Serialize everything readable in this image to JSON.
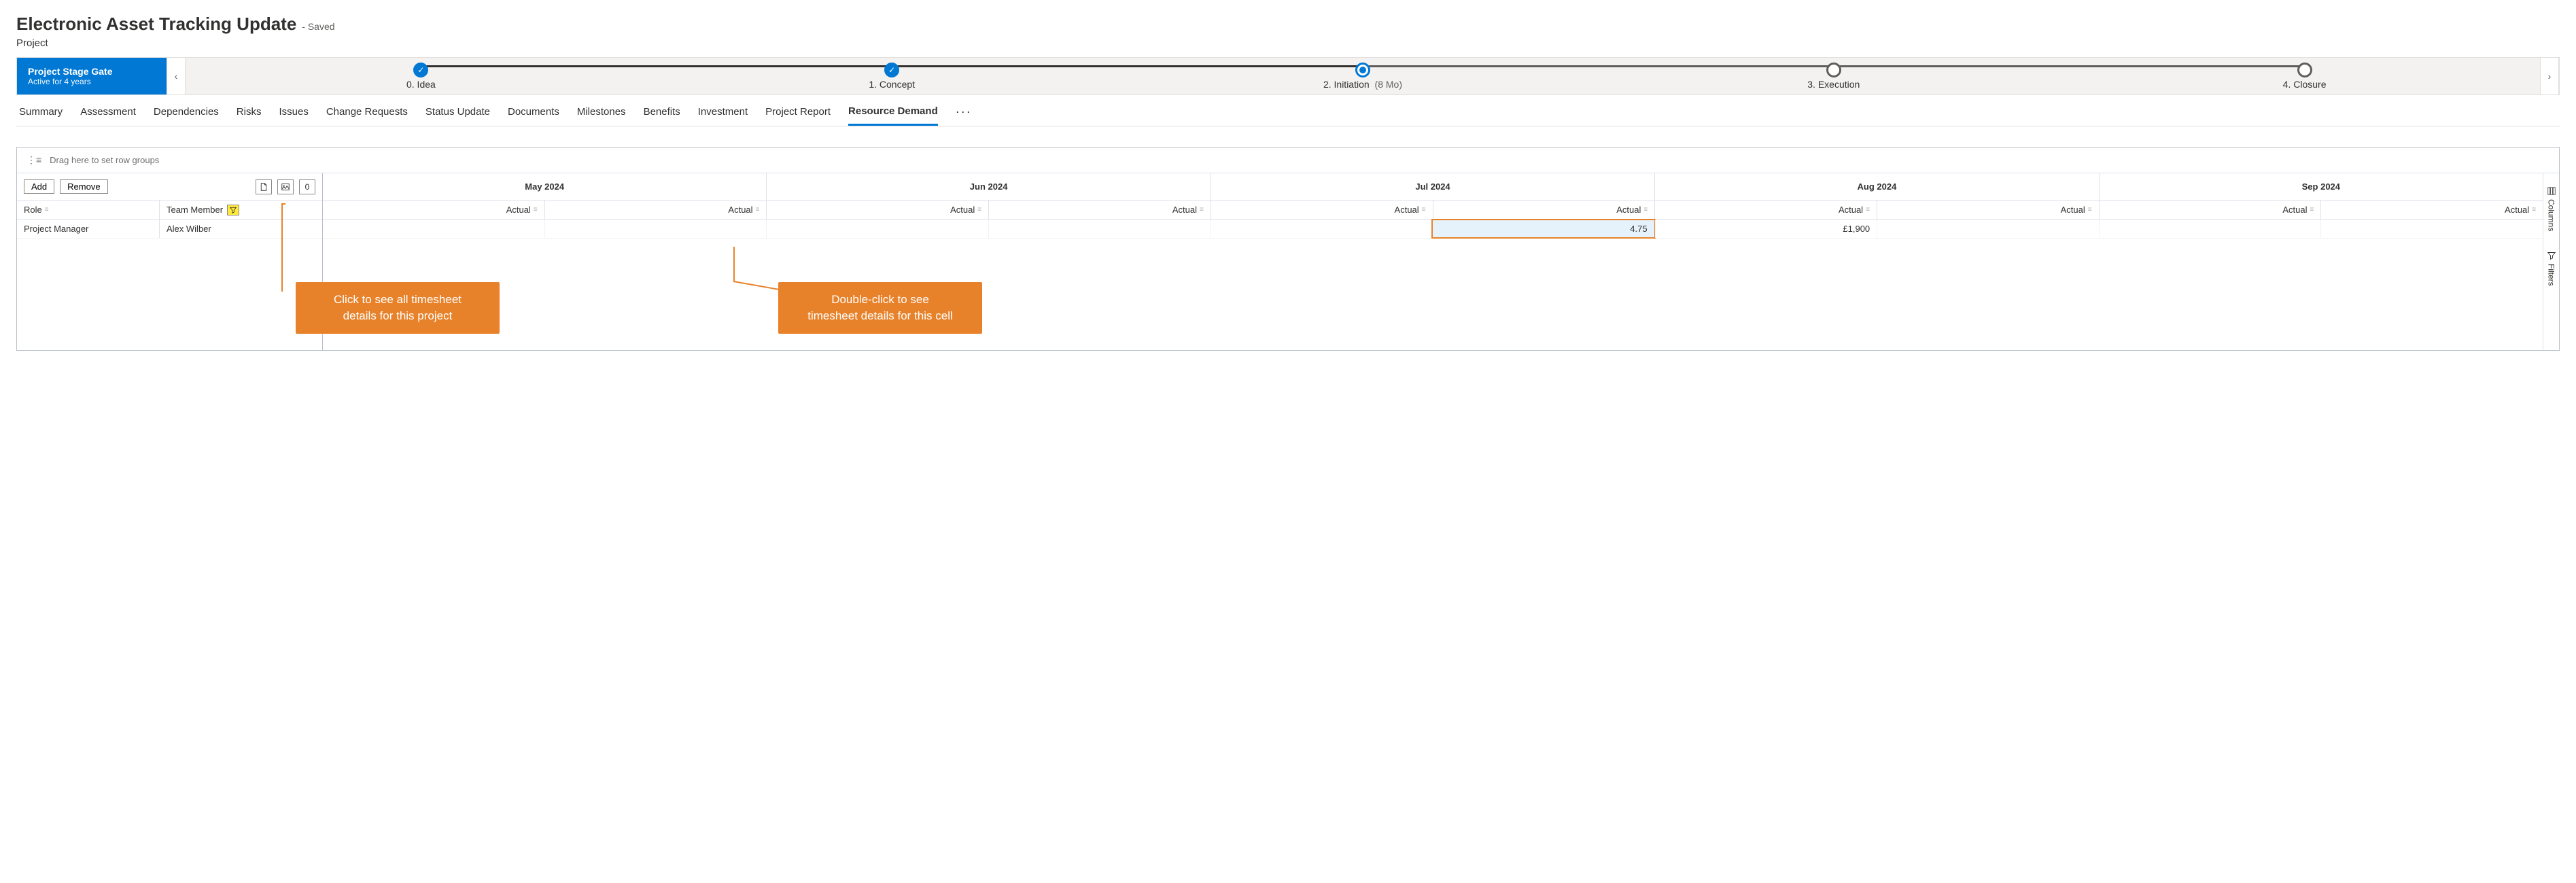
{
  "header": {
    "title": "Electronic Asset Tracking Update",
    "saved_suffix": "- Saved",
    "subtitle": "Project"
  },
  "stage_gate": {
    "label": "Project Stage Gate",
    "sub_label": "Active for 4 years",
    "prev_glyph": "‹",
    "next_glyph": "›",
    "stages": [
      {
        "label": "0. Idea",
        "state": "done"
      },
      {
        "label": "1. Concept",
        "state": "done"
      },
      {
        "label": "2. Initiation",
        "duration": "(8 Mo)",
        "state": "current"
      },
      {
        "label": "3. Execution",
        "state": "future"
      },
      {
        "label": "4. Closure",
        "state": "future"
      }
    ]
  },
  "tabs": {
    "items": [
      "Summary",
      "Assessment",
      "Dependencies",
      "Risks",
      "Issues",
      "Change Requests",
      "Status Update",
      "Documents",
      "Milestones",
      "Benefits",
      "Investment",
      "Project Report",
      "Resource Demand"
    ],
    "active_index": 12,
    "more_glyph": "···"
  },
  "grid": {
    "group_drop_hint": "Drag here to set row groups",
    "toolbar": {
      "add_label": "Add",
      "remove_label": "Remove",
      "zero_label": "0"
    },
    "left_headers": {
      "role": "Role",
      "member": "Team Member"
    },
    "rows": [
      {
        "role": "Project Manager",
        "member": "Alex Wilber"
      }
    ],
    "months": [
      "May 2024",
      "Jun 2024",
      "Jul 2024",
      "Aug 2024",
      "Sep 2024"
    ],
    "sub_label": "Actual",
    "cells": [
      [
        "",
        "",
        "",
        "",
        "",
        "4.75",
        "£1,900",
        "",
        "",
        ""
      ]
    ],
    "highlight_cell_index": 5,
    "side_panel": {
      "columns_label": "Columns",
      "filters_label": "Filters"
    }
  },
  "callouts": {
    "left": {
      "line1": "Click to see all timesheet",
      "line2": "details for this project"
    },
    "right": {
      "line1": "Double-click to see",
      "line2": "timesheet details for this cell"
    }
  },
  "colors": {
    "primary": "#0078d4",
    "callout": "#e8822a",
    "filter_badge_bg": "#ffeb3b"
  }
}
